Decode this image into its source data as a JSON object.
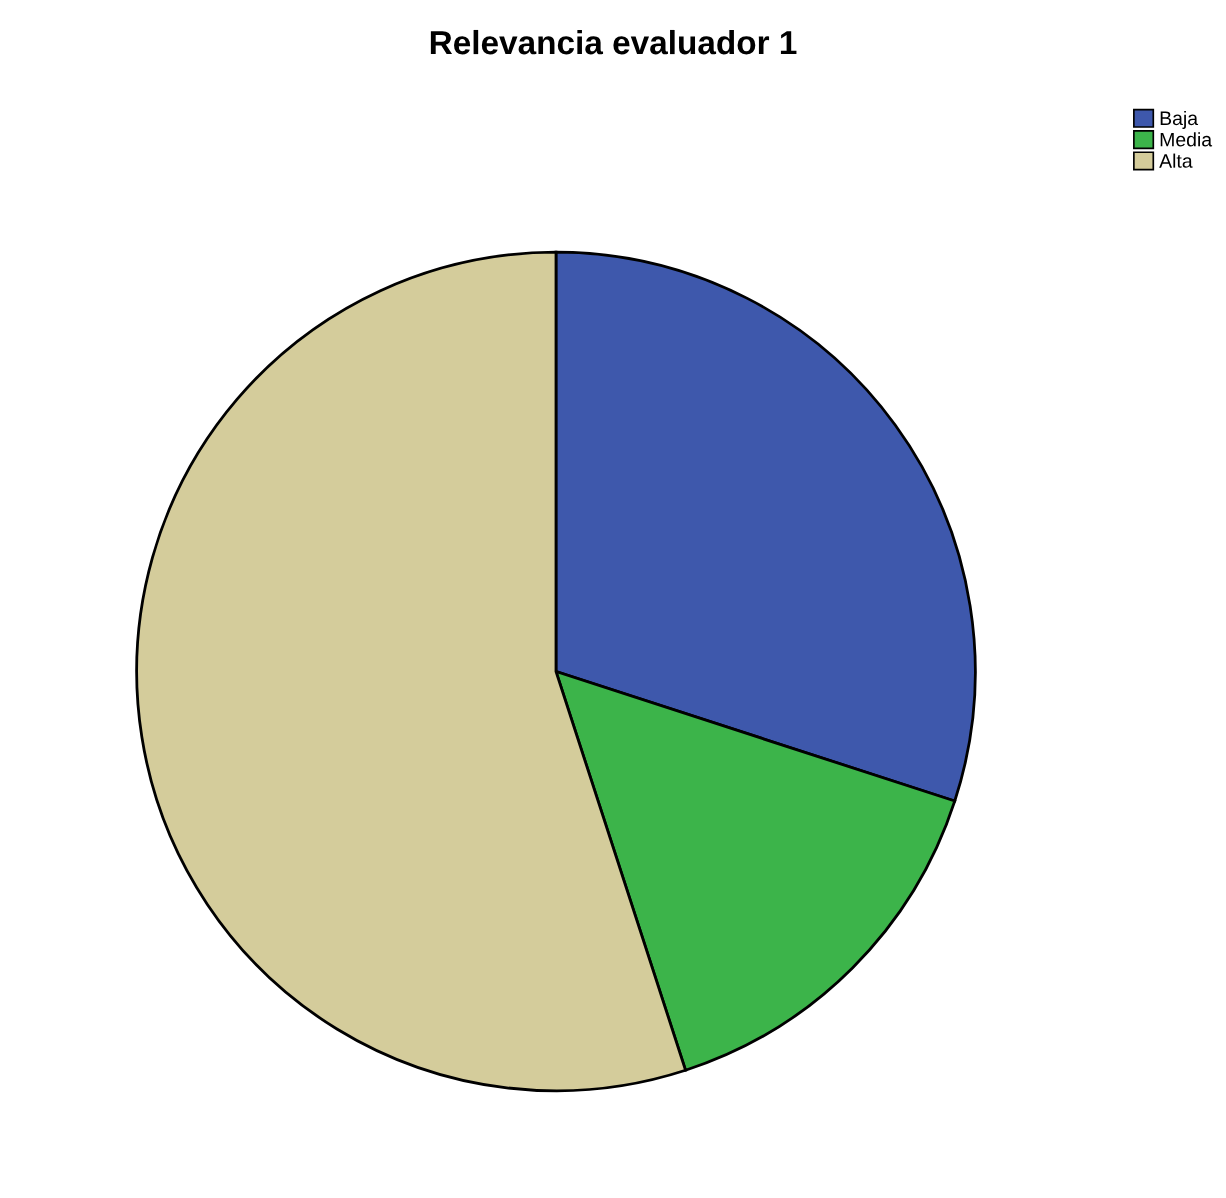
{
  "chart_data": {
    "type": "pie",
    "title": "Relevancia evaluador 1",
    "categories": [
      "Baja",
      "Media",
      "Alta"
    ],
    "values": [
      30,
      15,
      55
    ],
    "colors": [
      "#3e58ac",
      "#3cb44a",
      "#d4cc9b"
    ],
    "legend": "top right"
  }
}
